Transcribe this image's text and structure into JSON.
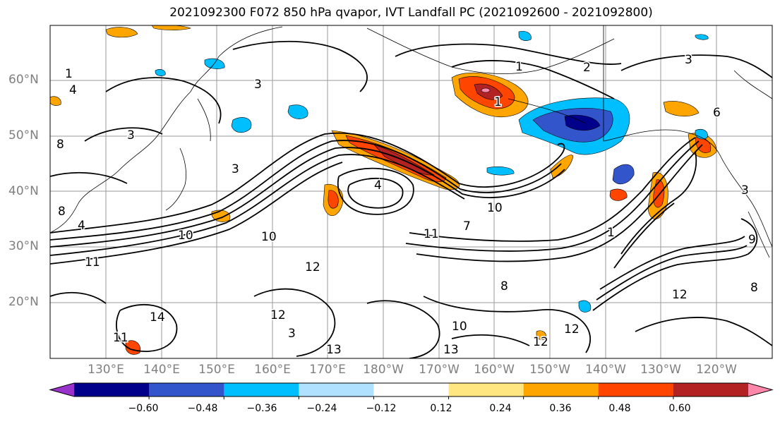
{
  "title": "2021092300 F072 850 hPa qvapor, IVT Landfall PC (2021092600 - 2021092800)",
  "map": {
    "lat_labels": [
      "60°N",
      "50°N",
      "40°N",
      "30°N",
      "20°N"
    ],
    "lon_labels": [
      "130°E",
      "140°E",
      "150°E",
      "160°E",
      "170°E",
      "180°W",
      "170°W",
      "160°W",
      "150°W",
      "140°W",
      "130°W",
      "120°W"
    ],
    "contour_labels": [
      "3",
      "3",
      "3",
      "3",
      "2",
      "1",
      "1",
      "4",
      "8",
      "3",
      "10",
      "10",
      "11",
      "12",
      "13",
      "14",
      "12",
      "10",
      "7",
      "8",
      "12",
      "12",
      "12",
      "8",
      "4",
      "3",
      "9",
      "6",
      "11",
      "13",
      "11",
      "1",
      "10",
      "4",
      "8",
      "1"
    ]
  },
  "colorbar": {
    "ticks": [
      "−0.60",
      "−0.48",
      "−0.36",
      "−0.24",
      "−0.12",
      "0.12",
      "0.24",
      "0.36",
      "0.48",
      "0.60"
    ],
    "colors": [
      "#9933cc",
      "#00008b",
      "#3355cc",
      "#00bfff",
      "#b0e2ff",
      "#ffffff",
      "#ffe680",
      "#ffa500",
      "#ff4500",
      "#b22222",
      "#ff88aa"
    ]
  }
}
